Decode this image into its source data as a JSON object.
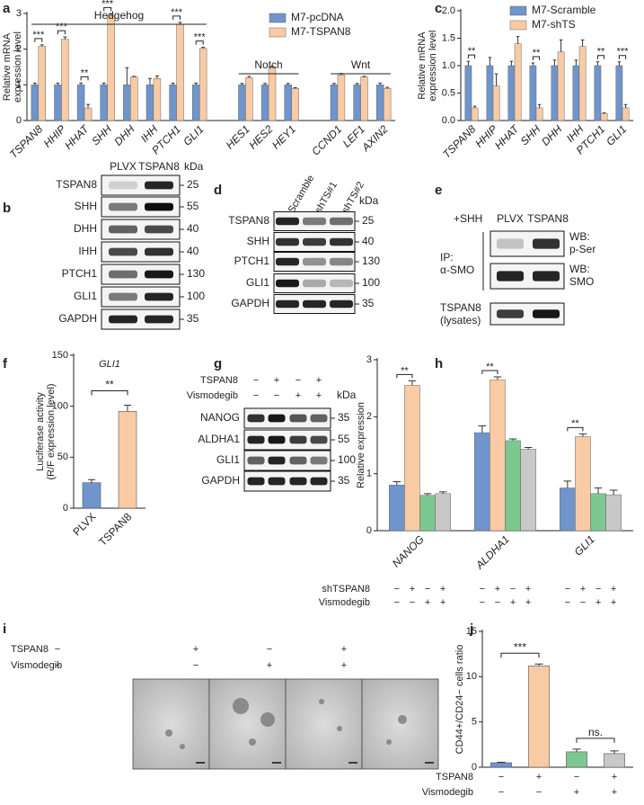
{
  "chart_data": [
    {
      "type": "bar",
      "panel": "a",
      "y_label": [
        "Relative mRNA",
        "expression level"
      ],
      "categories": [
        "TSPAN8",
        "HHIP",
        "HHAT",
        "SHH",
        "DHH",
        "IHH",
        "PTCH1",
        "GLI1",
        null,
        "HES1",
        "HES2",
        "HEY1",
        null,
        "CCND1",
        "LEF1",
        "AXIN2"
      ],
      "series": [
        {
          "name": "M7-pcDNA",
          "color": "#7094cc",
          "values": [
            1,
            1,
            1,
            1,
            1,
            1,
            1,
            1,
            null,
            1,
            1,
            1,
            null,
            1,
            1,
            1
          ],
          "errors": [
            0.05,
            0.05,
            0.05,
            0.05,
            0.48,
            0.18,
            0.05,
            0.05,
            null,
            0.04,
            0.04,
            0.04,
            null,
            0.04,
            0.04,
            0.05
          ]
        },
        {
          "name": "M7-TSPAN8",
          "color": "#f8cba5",
          "values": [
            2.08,
            2.28,
            0.35,
            2.93,
            1.22,
            1.18,
            2.7,
            2.02,
            null,
            1.2,
            1.5,
            0.9,
            null,
            1.28,
            1.22,
            0.9
          ],
          "errors": [
            0.04,
            0.06,
            0.1,
            0.06,
            0.02,
            0.07,
            0.05,
            0.03,
            null,
            0.04,
            0.02,
            0.02,
            null,
            0.04,
            0.02,
            0.03
          ]
        }
      ],
      "significance": [
        "***",
        "***",
        "**",
        "***",
        null,
        null,
        "***",
        "***",
        null,
        null,
        null,
        null,
        null,
        null,
        null,
        null
      ],
      "groups": [
        "Hedgehog",
        "Notch",
        "Wnt"
      ],
      "ylim": [
        0,
        3
      ],
      "yticks": [
        0,
        1,
        2,
        3
      ]
    },
    {
      "type": "bar",
      "panel": "c",
      "y_label": [
        "Relative mRNA",
        "expression level"
      ],
      "categories": [
        "TSPAN8",
        "HHIP",
        "HHAT",
        "SHH",
        "DHH",
        "IHH",
        "PTCH1",
        "GLI1"
      ],
      "series": [
        {
          "name": "M7-Scramble",
          "color": "#7094cc",
          "values": [
            1,
            1,
            1,
            1,
            1,
            1,
            1,
            1
          ],
          "errors": [
            0.08,
            0.15,
            0.08,
            0.05,
            0.1,
            0.1,
            0.07,
            0.07
          ]
        },
        {
          "name": "M7-shTS",
          "color": "#f8cba5",
          "values": [
            0.23,
            0.63,
            1.4,
            0.23,
            1.25,
            1.35,
            0.13,
            0.23
          ],
          "errors": [
            0.03,
            0.22,
            0.13,
            0.06,
            0.22,
            0.12,
            0.01,
            0.06
          ]
        }
      ],
      "significance": [
        "**",
        null,
        null,
        "**",
        null,
        null,
        "**",
        "***"
      ],
      "ylim": [
        0,
        2
      ],
      "yticks": [
        {
          "value": 0,
          "label": "0.0"
        },
        {
          "value": 0.5,
          "label": "0.5"
        },
        {
          "value": 1,
          "label": "1.0"
        },
        {
          "value": 1.5,
          "label": "1.5"
        },
        {
          "value": 2,
          "label": "2.0"
        }
      ]
    },
    {
      "type": "bar",
      "panel": "f",
      "title": "GLI1",
      "y_label": [
        "Luciferase activity",
        "(R/F expression level)"
      ],
      "categories": [
        "PLVX",
        "TSPAN8"
      ],
      "values": [
        25,
        95
      ],
      "errors": [
        3,
        6
      ],
      "colors": [
        "#7094cc",
        "#f8cba5"
      ],
      "significance": [
        "**"
      ],
      "ylim": [
        0,
        150
      ],
      "yticks": [
        0,
        50,
        100,
        150
      ]
    },
    {
      "type": "bar",
      "panel": "h",
      "y_label": [
        "Relative expression"
      ],
      "categories": [
        "NANOG",
        "ALDHA1",
        "GLI1"
      ],
      "series": [
        {
          "color": "#7094cc",
          "values": [
            0.8,
            1.72,
            0.75
          ],
          "errors": [
            0.06,
            0.12,
            0.12
          ]
        },
        {
          "color": "#f8cba5",
          "values": [
            2.55,
            2.65,
            1.65
          ],
          "errors": [
            0.08,
            0.05,
            0.05
          ]
        },
        {
          "color": "#7dc891",
          "values": [
            0.62,
            1.58,
            0.65
          ],
          "errors": [
            0.03,
            0.03,
            0.1
          ]
        },
        {
          "color": "#c8c8c8",
          "values": [
            0.65,
            1.43,
            0.63
          ],
          "errors": [
            0.03,
            0.03,
            0.08
          ]
        }
      ],
      "significance": [
        "**",
        "**",
        "**"
      ],
      "conditions": [
        {
          "label": "shTSPAN8",
          "signs": [
            "−",
            "+",
            "−",
            "+",
            "−",
            "+",
            "−",
            "+",
            "−",
            "+",
            "−",
            "+"
          ]
        },
        {
          "label": "Vismodegib",
          "signs": [
            "−",
            "−",
            "+",
            "+",
            "−",
            "−",
            "+",
            "+",
            "−",
            "−",
            "+",
            "+"
          ]
        }
      ],
      "ylim": [
        0,
        3
      ],
      "yticks": [
        0,
        1,
        2,
        3
      ]
    },
    {
      "type": "bar",
      "panel": "j",
      "y_label": [
        "CD44+/CD24− cells ratio"
      ],
      "categories": [
        null,
        null,
        null,
        null
      ],
      "values": [
        0.5,
        11.2,
        1.7,
        1.5
      ],
      "errors": [
        0.05,
        0.2,
        0.3,
        0.3
      ],
      "colors": [
        "#7094cc",
        "#f8cba5",
        "#7dc891",
        "#c8c8c8"
      ],
      "significance": [
        "***",
        "ns."
      ],
      "conditions": [
        {
          "label": "TSPAN8",
          "signs": [
            "−",
            "+",
            "−",
            "+"
          ]
        },
        {
          "label": "Vismodegib",
          "signs": [
            "−",
            "−",
            "+",
            "+"
          ]
        }
      ],
      "ylim": [
        0,
        15
      ],
      "yticks": [
        0,
        5,
        10,
        15
      ]
    }
  ],
  "blot_b": {
    "panel": "b",
    "columns": [
      "PLVX",
      "TSPAN8"
    ],
    "unit": "kDa",
    "rows": [
      {
        "label": "TSPAN8",
        "kda": 25
      },
      {
        "label": "SHH",
        "kda": 55
      },
      {
        "label": "DHH",
        "kda": 40
      },
      {
        "label": "IHH",
        "kda": 40
      },
      {
        "label": "PTCH1",
        "kda": 130
      },
      {
        "label": "GLI1",
        "kda": 100
      },
      {
        "label": "GAPDH",
        "kda": 35
      }
    ]
  },
  "blot_d": {
    "panel": "d",
    "columns": [
      "Scramble",
      "shTS#1",
      "shTS#2"
    ],
    "unit": "kDa",
    "rows": [
      {
        "label": "TSPAN8",
        "kda": 25
      },
      {
        "label": "SHH",
        "kda": 40
      },
      {
        "label": "PTCH1",
        "kda": 130
      },
      {
        "label": "GLI1",
        "kda": 100
      },
      {
        "label": "GAPDH",
        "kda": 35
      }
    ]
  },
  "blot_e": {
    "panel": "e",
    "treatment": "+SHH",
    "columns": [
      "PLVX",
      "TSPAN8"
    ],
    "ip_label": [
      "IP:",
      "α-SMO"
    ],
    "rows": [
      {
        "label": [
          "WB:",
          "p-Ser"
        ]
      },
      {
        "label": [
          "WB:",
          "SMO"
        ]
      }
    ],
    "lysate": [
      "TSPAN8",
      "(lysates)"
    ]
  },
  "blot_g": {
    "panel": "g",
    "unit": "kDa",
    "conditions": [
      {
        "label": "TSPAN8",
        "signs": [
          "−",
          "+",
          "−",
          "+"
        ]
      },
      {
        "label": "Vismodegib",
        "signs": [
          "−",
          "−",
          "+",
          "+"
        ]
      }
    ],
    "rows": [
      {
        "label": "NANOG",
        "kda": 35
      },
      {
        "label": "ALDHA1",
        "kda": 55
      },
      {
        "label": "GLI1",
        "kda": 100
      },
      {
        "label": "GAPDH",
        "kda": 35
      }
    ]
  },
  "images_i": {
    "panel": "i",
    "conditions": [
      {
        "label": "TSPAN8",
        "signs": [
          "−",
          "+",
          "−",
          "+"
        ]
      },
      {
        "label": "Vismodegib",
        "signs": [
          "−",
          "−",
          "+",
          "+"
        ]
      }
    ]
  }
}
